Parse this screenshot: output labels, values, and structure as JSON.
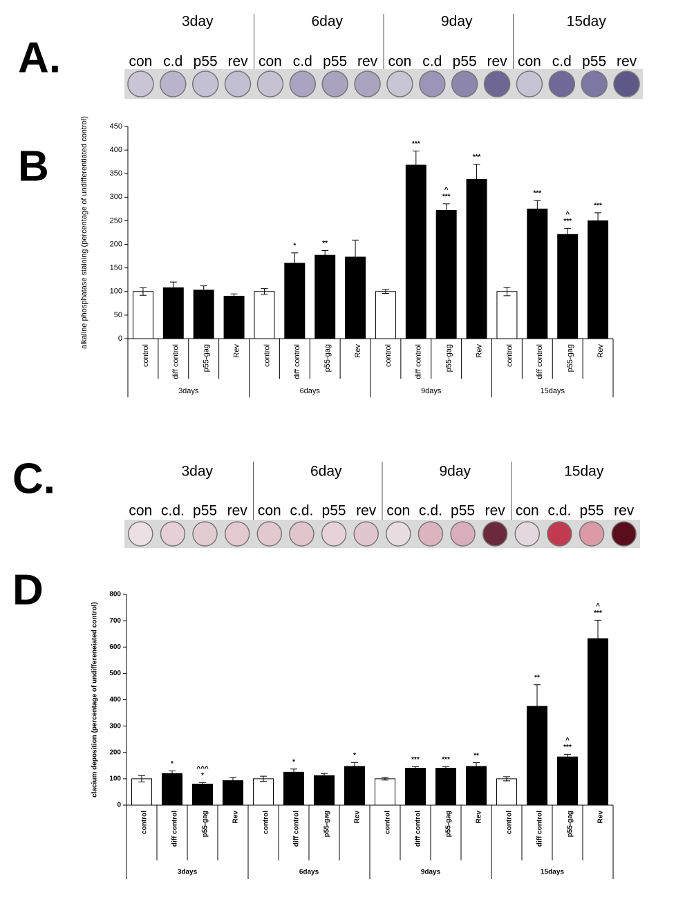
{
  "panels": {
    "A": {
      "label": "A.",
      "days": [
        "3day",
        "6day",
        "9day",
        "15day"
      ],
      "wells": [
        "con",
        "c.d",
        "p55",
        "rev",
        "con",
        "c.d",
        "p55",
        "rev",
        "con",
        "c.d",
        "p55",
        "rev",
        "con",
        "c.d",
        "p55",
        "rev"
      ]
    },
    "B": {
      "label": "B"
    },
    "C": {
      "label": "C.",
      "days": [
        "3day",
        "6day",
        "9day",
        "15day"
      ],
      "wells": [
        "con",
        "c.d.",
        "p55",
        "rev",
        "con",
        "c.d.",
        "p55",
        "rev",
        "con",
        "c.d.",
        "p55",
        "rev",
        "con",
        "c.d.",
        "p55",
        "rev"
      ]
    },
    "D": {
      "label": "D"
    }
  },
  "chart_data": [
    {
      "type": "bar",
      "ylabel": "alkaline phosphatase staining (percentage of undifferentiated control)",
      "categories": [
        "control",
        "diff control",
        "p55-gag",
        "Rev",
        "control",
        "diff control",
        "p55-gag",
        "Rev",
        "control",
        "diff control",
        "p55-gag",
        "Rev",
        "control",
        "diff control",
        "p55-gag",
        "Rev"
      ],
      "groups": [
        "3days",
        "6days",
        "9days",
        "15days"
      ],
      "values": [
        100,
        108,
        103,
        90,
        100,
        160,
        177,
        173,
        100,
        368,
        272,
        338,
        100,
        275,
        221,
        250
      ],
      "errors": [
        8,
        12,
        9,
        5,
        6,
        22,
        10,
        36,
        4,
        30,
        14,
        32,
        9,
        18,
        13,
        17
      ],
      "colors": [
        "#ffffff",
        "#000000",
        "#000000",
        "#000000",
        "#ffffff",
        "#000000",
        "#000000",
        "#000000",
        "#ffffff",
        "#000000",
        "#000000",
        "#000000",
        "#ffffff",
        "#000000",
        "#000000",
        "#000000"
      ],
      "annotations": [
        null,
        null,
        null,
        null,
        null,
        "*",
        "**",
        null,
        null,
        "***",
        [
          "^",
          "***"
        ],
        "***",
        null,
        "***",
        [
          "^",
          "***"
        ],
        "***"
      ],
      "ylim": [
        0,
        450
      ],
      "yticks": [
        0,
        50,
        100,
        150,
        200,
        250,
        300,
        350,
        400,
        450
      ]
    },
    {
      "type": "bar",
      "ylabel": "clacium deposition (percentage of undiffereneiated control)",
      "categories": [
        "control",
        "diff control",
        "p55-gag",
        "Rev",
        "control",
        "diff control",
        "p55-gag",
        "Rev",
        "control",
        "diff control",
        "p55-gag",
        "Rev",
        "control",
        "diff control",
        "p55-gag",
        "Rev"
      ],
      "groups": [
        "3days",
        "6days",
        "9days",
        "15days"
      ],
      "values": [
        100,
        120,
        80,
        93,
        100,
        125,
        112,
        147,
        100,
        140,
        140,
        147,
        100,
        375,
        183,
        632
      ],
      "errors": [
        12,
        10,
        6,
        12,
        10,
        12,
        8,
        15,
        5,
        6,
        6,
        14,
        8,
        82,
        10,
        70
      ],
      "colors": [
        "#ffffff",
        "#000000",
        "#000000",
        "#000000",
        "#ffffff",
        "#000000",
        "#000000",
        "#000000",
        "#ffffff",
        "#000000",
        "#000000",
        "#000000",
        "#ffffff",
        "#000000",
        "#000000",
        "#000000"
      ],
      "annotations": [
        null,
        "*",
        [
          "^^^",
          "*"
        ],
        null,
        null,
        "*",
        null,
        "*",
        null,
        "***",
        "***",
        "**",
        null,
        "**",
        [
          "^",
          "***"
        ],
        [
          "^",
          "***"
        ]
      ],
      "ylim": [
        0,
        800
      ],
      "yticks": [
        0,
        100,
        200,
        300,
        400,
        500,
        600,
        700,
        800
      ]
    }
  ]
}
